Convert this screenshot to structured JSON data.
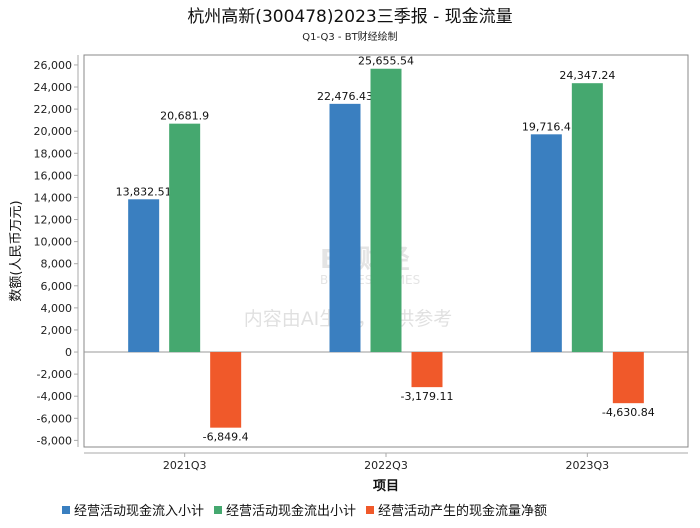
{
  "chart_data": {
    "type": "bar",
    "title": "杭州高新(300478)2023三季报 - 现金流量",
    "subtitle": "Q1-Q3 - BT财经绘制",
    "xlabel": "项目",
    "ylabel": "数额(人民币万元)",
    "categories": [
      "2021Q3",
      "2022Q3",
      "2023Q3"
    ],
    "ylim": [
      -8600,
      26900
    ],
    "yticks": [
      -8000,
      -6000,
      -4000,
      -2000,
      0,
      2000,
      4000,
      6000,
      8000,
      10000,
      12000,
      14000,
      16000,
      18000,
      20000,
      22000,
      24000,
      26000
    ],
    "grid": false,
    "legend_position": "bottom",
    "series": [
      {
        "name": "经营活动现金流入小计",
        "color": "#3a7fc0",
        "values": [
          13832.51,
          22476.43,
          19716.4
        ],
        "labels": [
          "13,832.51",
          "22,476.43",
          "19,716.4"
        ]
      },
      {
        "name": "经营活动现金流出小计",
        "color": "#45a86f",
        "values": [
          20681.9,
          25655.54,
          24347.24
        ],
        "labels": [
          "20,681.9",
          "25,655.54",
          "24,347.24"
        ]
      },
      {
        "name": "经营活动产生的现金流量净额",
        "color": "#f0592a",
        "values": [
          -6849.4,
          -3179.11,
          -4630.84
        ],
        "labels": [
          "-6,849.4",
          "-3,179.11",
          "-4,630.84"
        ]
      }
    ]
  },
  "watermark": {
    "brand": "BT财经",
    "brand_en": "BUSINESS TIMES",
    "notice": "内容由AI生成，仅供参考"
  }
}
